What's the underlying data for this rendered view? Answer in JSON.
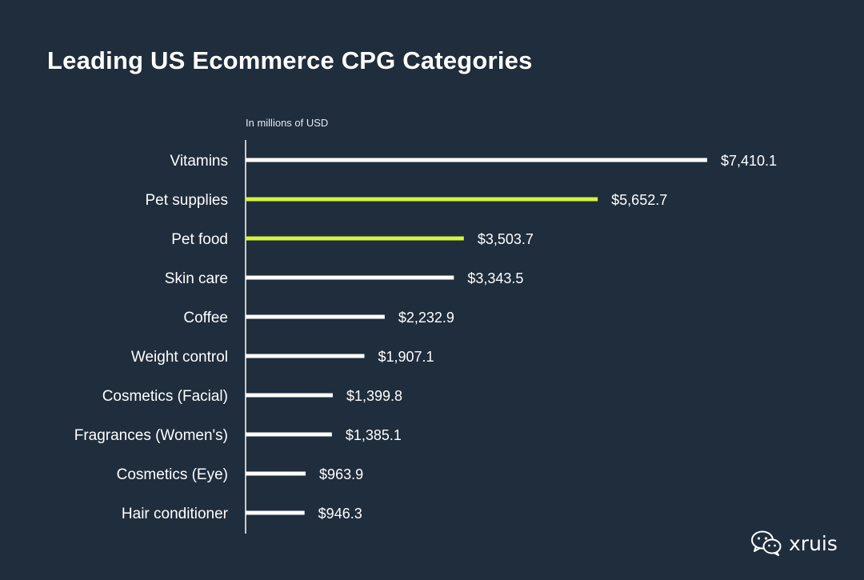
{
  "chart_data": {
    "type": "bar",
    "orientation": "horizontal",
    "title": "Leading US Ecommerce CPG Categories",
    "unit_note": "In millions of USD",
    "categories": [
      "Vitamins",
      "Pet supplies",
      "Pet food",
      "Skin care",
      "Coffee",
      "Weight control",
      "Cosmetics (Facial)",
      "Fragrances (Women's)",
      "Cosmetics (Eye)",
      "Hair conditioner"
    ],
    "values": [
      7410.1,
      5652.7,
      3503.7,
      3343.5,
      2232.9,
      1907.1,
      1399.8,
      1385.1,
      963.9,
      946.3
    ],
    "value_labels": [
      "$7,410.1",
      "$5,652.7",
      "$3,503.7",
      "$3,343.5",
      "$2,232.9",
      "$1,907.1",
      "$1,399.8",
      "$1,385.1",
      "$963.9",
      "$946.3"
    ],
    "highlighted": [
      "Pet supplies",
      "Pet food"
    ],
    "colors": {
      "background": "#1f2d3d",
      "bar": "#ffffff",
      "highlight": "#d4f53c",
      "text": "#ffffff"
    },
    "xlim": [
      0,
      7410.1
    ],
    "grid": false,
    "legend": "none"
  },
  "watermark": {
    "text": "xruis",
    "icon": "wechat-icon"
  }
}
